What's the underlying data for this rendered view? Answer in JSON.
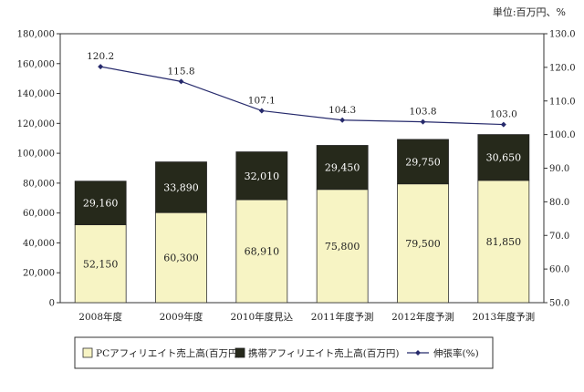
{
  "chart_data": {
    "type": "bar",
    "unit_note": "単位:百万円、%",
    "categories": [
      "2008年度",
      "2009年度",
      "2010年度見込",
      "2011年度予測",
      "2012年度予測",
      "2013年度予測"
    ],
    "series": [
      {
        "name": "PCアフィリエイト売上高(百万円)",
        "kind": "bar",
        "axis": "left",
        "color": "#f7f4c4",
        "values": [
          52150,
          60300,
          68910,
          75800,
          79500,
          81850
        ],
        "labels": [
          "52,150",
          "60,300",
          "68,910",
          "75,800",
          "79,500",
          "81,850"
        ]
      },
      {
        "name": "携帯アフィリエイト売上高(百万円)",
        "kind": "bar",
        "axis": "left",
        "color": "#26291b",
        "values": [
          29160,
          33890,
          32010,
          29450,
          29750,
          30650
        ],
        "labels": [
          "29,160",
          "33,890",
          "32,010",
          "29,450",
          "29,750",
          "30,650"
        ]
      },
      {
        "name": "伸張率(%)",
        "kind": "line",
        "axis": "right",
        "color": "#262a6c",
        "values": [
          120.2,
          115.8,
          107.1,
          104.3,
          103.8,
          103.0
        ],
        "labels": [
          "120.2",
          "115.8",
          "107.1",
          "104.3",
          "103.8",
          "103.0"
        ]
      }
    ],
    "y_left": {
      "min": 0,
      "max": 180000,
      "ticks": [
        "0",
        "20,000",
        "40,000",
        "60,000",
        "80,000",
        "100,000",
        "120,000",
        "140,000",
        "160,000",
        "180,000"
      ]
    },
    "y_right": {
      "min": 50,
      "max": 130,
      "ticks": [
        "50.0",
        "60.0",
        "70.0",
        "80.0",
        "90.0",
        "100.0",
        "110.0",
        "120.0",
        "130.0"
      ]
    },
    "grid": false,
    "legend_position": "bottom"
  }
}
